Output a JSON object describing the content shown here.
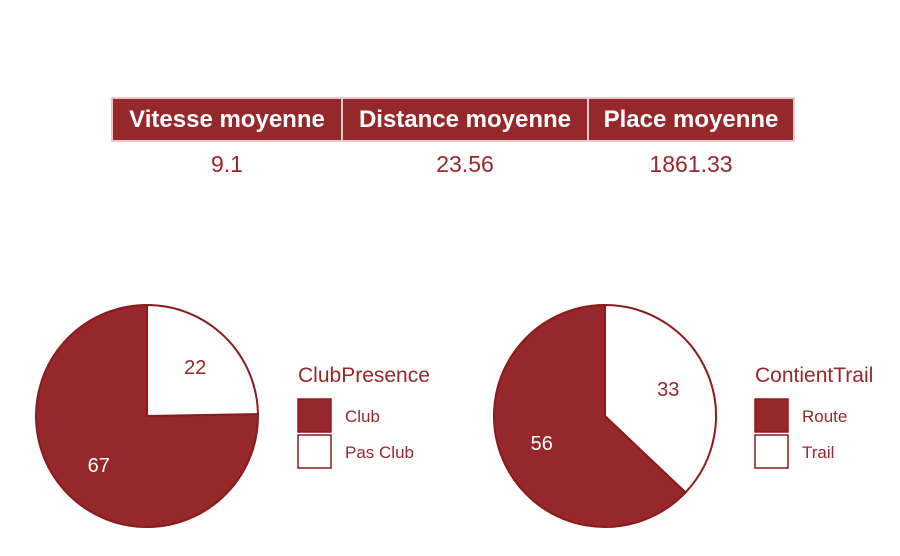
{
  "summary_table": {
    "headers": [
      "Vitesse moyenne",
      "Distance moyenne",
      "Place moyenne"
    ],
    "values": [
      "9.1",
      "23.56",
      "1861.33"
    ]
  },
  "colors": {
    "accent": "#96282b",
    "fill_light": "#ffffff",
    "stroke": "#8b1a1c"
  },
  "chart_data": [
    {
      "type": "pie",
      "legend_title": "ClubPresence",
      "labels": [
        "Club",
        "Pas Club"
      ],
      "values": [
        67,
        22
      ],
      "colors": [
        "#96282b",
        "#ffffff"
      ],
      "legend_position": "right"
    },
    {
      "type": "pie",
      "legend_title": "ContientTrail",
      "labels": [
        "Route",
        "Trail"
      ],
      "values": [
        56,
        33
      ],
      "colors": [
        "#96282b",
        "#ffffff"
      ],
      "legend_position": "right"
    }
  ]
}
